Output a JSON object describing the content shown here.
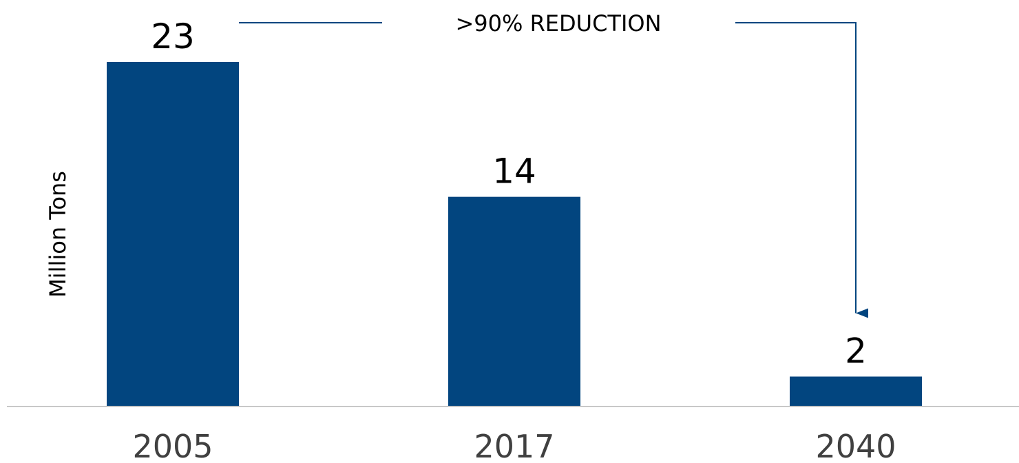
{
  "chart_data": {
    "type": "bar",
    "categories": [
      "2005",
      "2017",
      "2040"
    ],
    "values": [
      23,
      14,
      2
    ],
    "data_labels": [
      "23",
      "14",
      "2"
    ],
    "title": "",
    "xlabel": "",
    "ylabel": "Million Tons",
    "ylim": [
      0,
      23
    ],
    "grid": false,
    "bar_color": "#02457f",
    "axis_color": "#c8c8c8",
    "annotation": {
      "text": ">90% REDUCTION",
      "from_category": "2005",
      "to_category": "2040",
      "color": "#02457f"
    }
  }
}
